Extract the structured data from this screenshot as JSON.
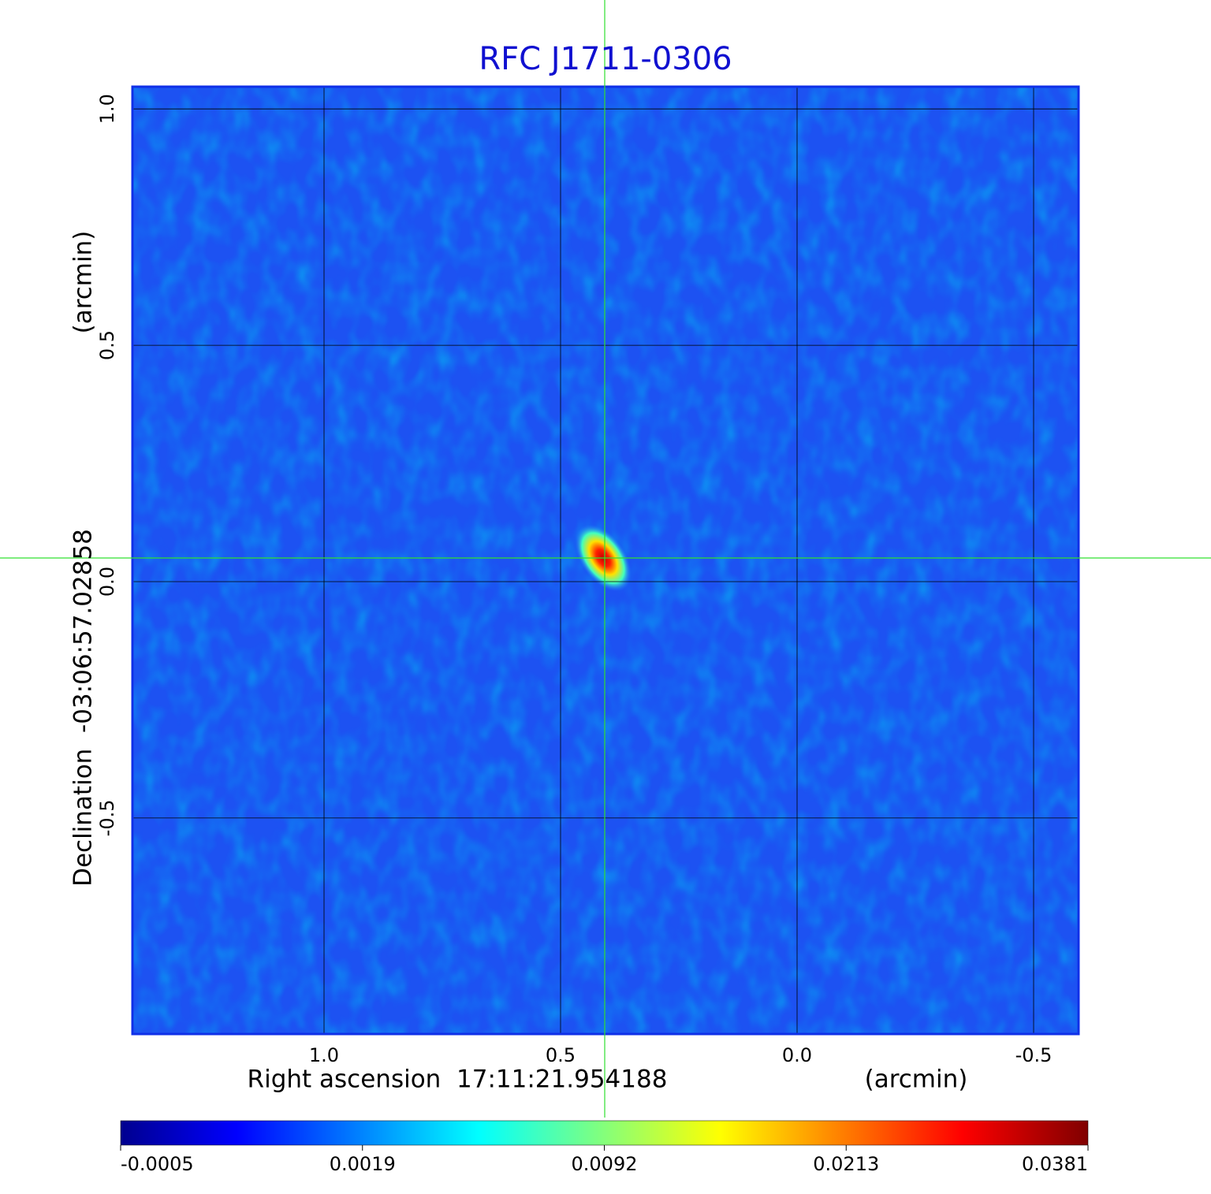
{
  "chart_data": {
    "type": "image",
    "title": "RFC J1711-0306",
    "x_label": "Right ascension  17:11:21.954188",
    "x_unit": "(arcmin)",
    "y_label": "Declination  -03:06:57.02858",
    "y_unit": "(arcmin)",
    "xlim": [
      1.405,
      -0.595
    ],
    "ylim": [
      -0.957,
      1.047
    ],
    "xticks": [
      {
        "value": 1,
        "label": "1.0"
      },
      0.5,
      {
        "value": 0,
        "label": "0.0"
      },
      -0.5
    ],
    "yticks": [
      {
        "value": 1,
        "label": "1.0"
      },
      0.5,
      {
        "value": 0,
        "label": "0.0"
      },
      -0.5
    ],
    "grid": true,
    "colormap": "jet",
    "colorbar_ticks": [
      -0.0005,
      0.0019,
      0.0092,
      0.0213,
      0.0381
    ]
  }
}
